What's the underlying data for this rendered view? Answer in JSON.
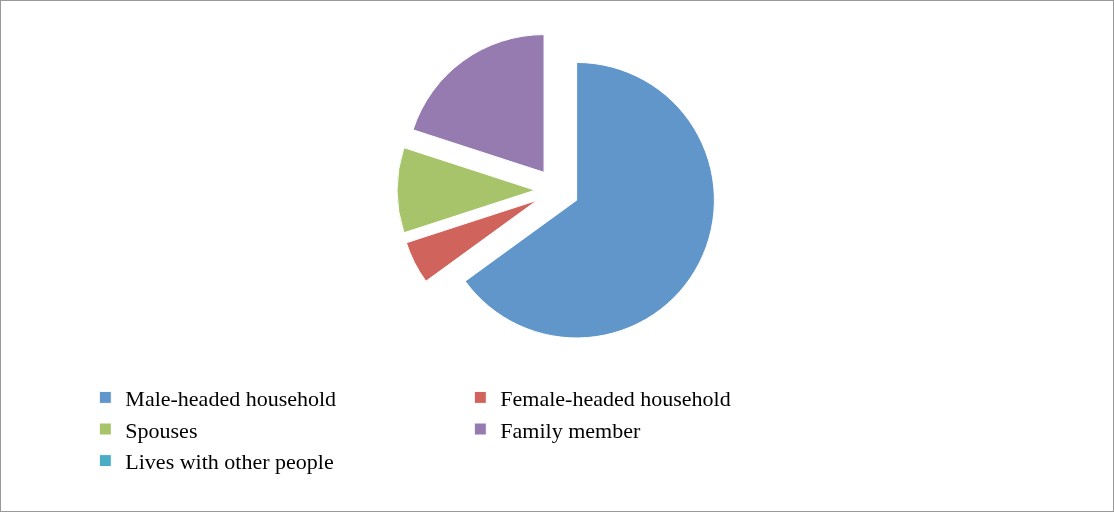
{
  "chart_data": {
    "type": "pie",
    "categories": [
      "Male-headed household",
      "Female-headed household",
      "Spouses",
      "Family member",
      "Lives with other people"
    ],
    "values": [
      65,
      5,
      10,
      20,
      0
    ],
    "colors": [
      "#6096c9",
      "#d0645c",
      "#a7c46a",
      "#957bb0",
      "#4bacc6"
    ],
    "legend": "bottom"
  }
}
